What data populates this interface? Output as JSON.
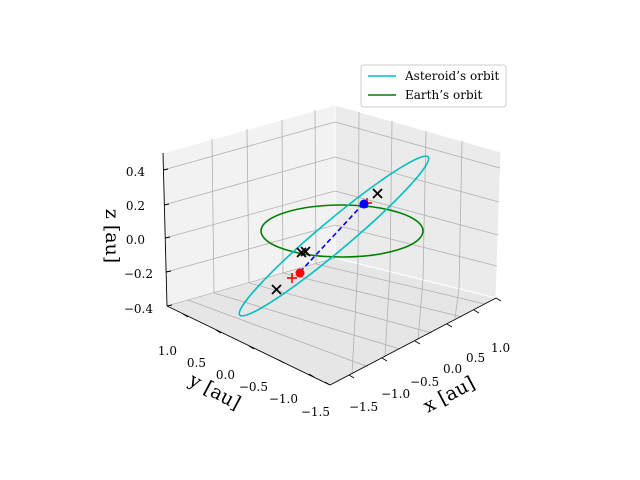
{
  "chart_data": {
    "type": "line3d",
    "title": "",
    "xlabel": "x [au]",
    "ylabel": "y [au]",
    "zlabel": "z [au]",
    "x_ticks": [
      "−1.5",
      "−1.0",
      "−0.5",
      "0.0",
      "0.5",
      "1.0"
    ],
    "y_ticks": [
      "1.0",
      "0.5",
      "0.0",
      "−0.5",
      "−1.0",
      "−1.5"
    ],
    "z_ticks": [
      "0.4",
      "0.2",
      "0.0",
      "−0.2",
      "−0.4"
    ],
    "xlim": [
      -1.6,
      1.2
    ],
    "ylim": [
      -1.6,
      1.2
    ],
    "zlim": [
      -0.5,
      0.5
    ],
    "grid": true,
    "legend_position": "top-right",
    "series": [
      {
        "name": "Asteroid’s orbit",
        "color": "#00bfbf",
        "kind": "ellipse"
      },
      {
        "name": "Earth’s orbit",
        "color": "#008000",
        "kind": "circle",
        "radius_au": 1.0
      }
    ],
    "transfer_path": {
      "color": "#0000ff",
      "style": "dashed"
    },
    "markers": [
      {
        "kind": "dot",
        "color": "#0000ff"
      },
      {
        "kind": "dot",
        "color": "#ff0000"
      },
      {
        "kind": "plus",
        "color": "#ff0000"
      },
      {
        "kind": "plus",
        "color": "#ff0000"
      },
      {
        "kind": "x",
        "color": "#000000"
      },
      {
        "kind": "x",
        "color": "#000000"
      },
      {
        "kind": "x",
        "color": "#000000"
      },
      {
        "kind": "x",
        "color": "#000000"
      }
    ]
  }
}
